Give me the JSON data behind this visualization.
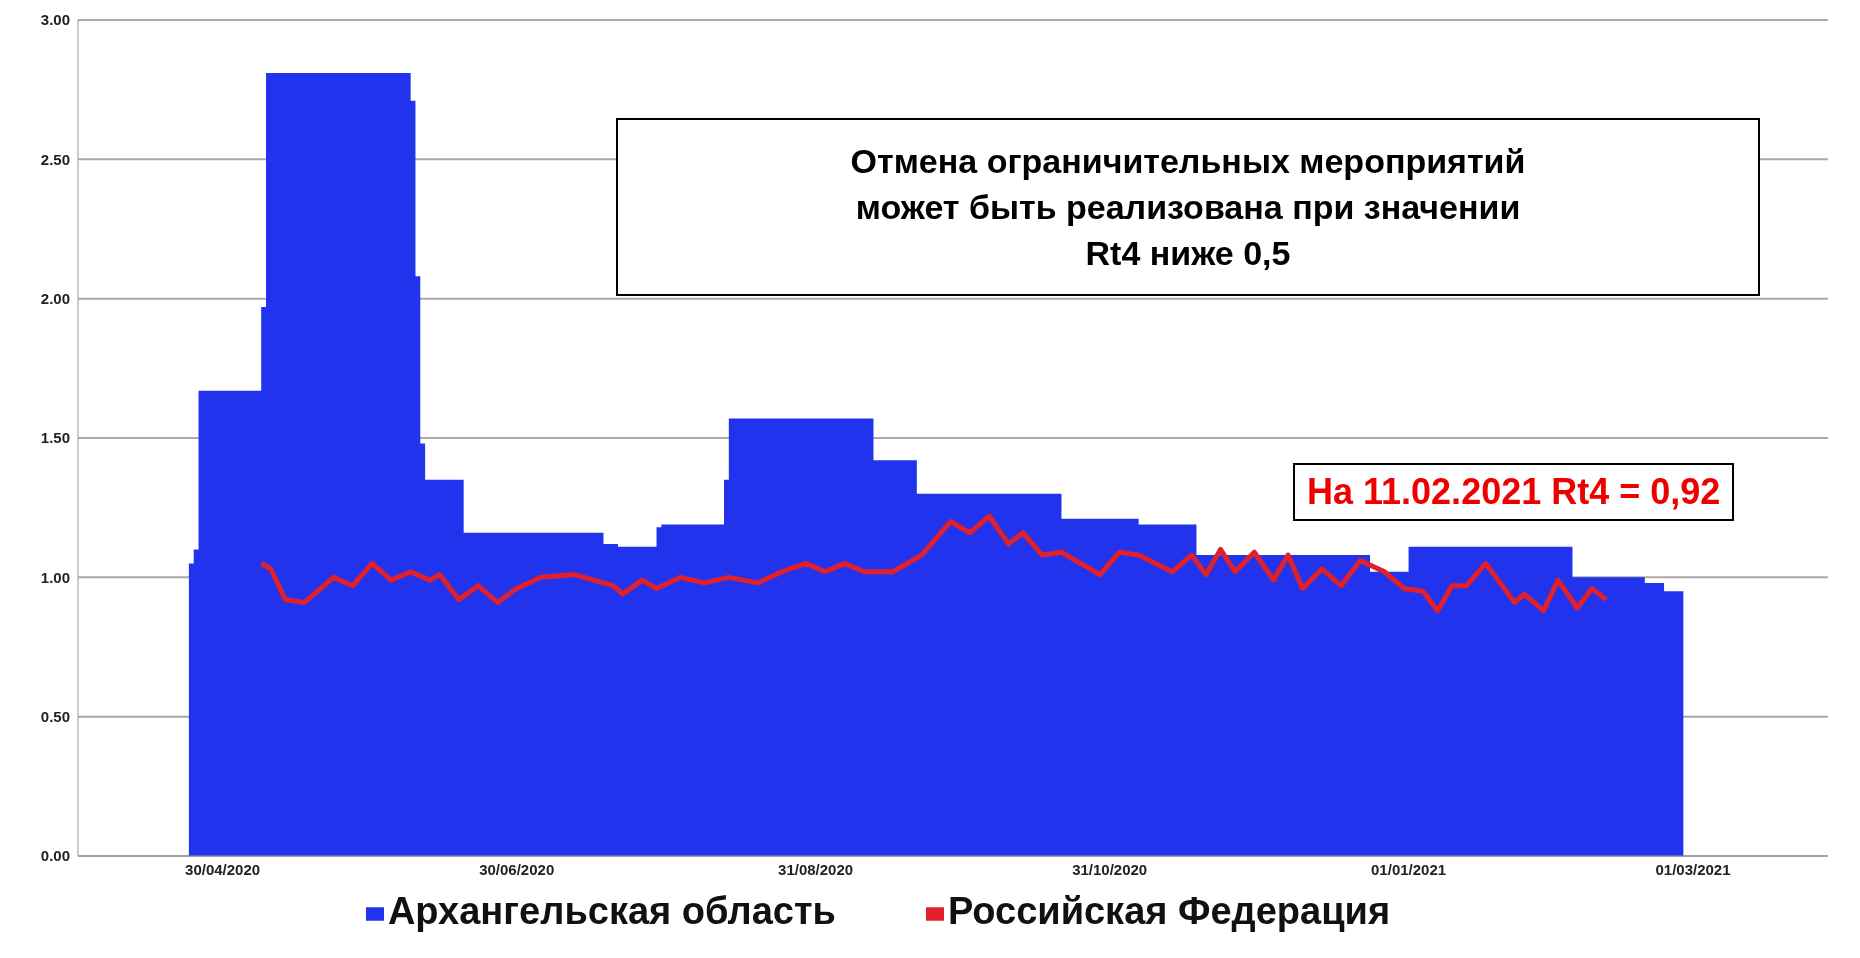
{
  "chart_data": {
    "type": "area",
    "xlim": [
      "2020-03-31",
      "2021-03-29"
    ],
    "xticks": [
      {
        "value": "2020-04-30",
        "label": "30/04/2020"
      },
      {
        "value": "2020-06-30",
        "label": "30/06/2020"
      },
      {
        "value": "2020-08-31",
        "label": "31/08/2020"
      },
      {
        "value": "2020-10-31",
        "label": "31/10/2020"
      },
      {
        "value": "2021-01-01",
        "label": "01/01/2021"
      },
      {
        "value": "2021-03-01",
        "label": "01/03/2021"
      }
    ],
    "ylim": [
      0,
      3
    ],
    "yticks": [
      {
        "value": 0,
        "label": "0.00"
      },
      {
        "value": 0.5,
        "label": "0.50"
      },
      {
        "value": 1,
        "label": "1.00"
      },
      {
        "value": 1.5,
        "label": "1.50"
      },
      {
        "value": 2,
        "label": "2.00"
      },
      {
        "value": 2.5,
        "label": "2.50"
      },
      {
        "value": 3,
        "label": "3.00"
      }
    ],
    "grid": "y",
    "legend": "bottom",
    "series": [
      {
        "name": "Архангельская область",
        "color": "#2233ee",
        "x": [
          "2020-04-23",
          "2020-04-24",
          "2020-04-25",
          "2020-05-08",
          "2020-05-09",
          "2020-06-08",
          "2020-06-09",
          "2020-06-10",
          "2020-06-11",
          "2020-06-19",
          "2020-07-18",
          "2020-07-21",
          "2020-07-29",
          "2020-07-30",
          "2020-08-12",
          "2020-08-13",
          "2020-09-12",
          "2020-09-21",
          "2020-10-21",
          "2020-11-06",
          "2020-11-18",
          "2020-12-24",
          "2021-01-01",
          "2021-02-04",
          "2021-02-19",
          "2021-02-23",
          "2021-02-27"
        ],
        "values": [
          1.05,
          1.1,
          1.67,
          1.97,
          2.81,
          2.71,
          2.08,
          1.48,
          1.35,
          1.16,
          1.12,
          1.11,
          1.18,
          1.19,
          1.35,
          1.57,
          1.42,
          1.3,
          1.21,
          1.19,
          1.08,
          1.02,
          1.11,
          1.0,
          0.98,
          0.95,
          0.92
        ]
      },
      {
        "name": "Российская Федерация",
        "type": "line",
        "color": "#e0202a",
        "x": [
          "2020-05-08",
          "2020-05-10",
          "2020-05-13",
          "2020-05-17",
          "2020-05-23",
          "2020-05-27",
          "2020-05-31",
          "2020-06-04",
          "2020-06-08",
          "2020-06-12",
          "2020-06-14",
          "2020-06-18",
          "2020-06-22",
          "2020-06-26",
          "2020-06-30",
          "2020-07-05",
          "2020-07-12",
          "2020-07-20",
          "2020-07-22",
          "2020-07-26",
          "2020-07-29",
          "2020-08-03",
          "2020-08-08",
          "2020-08-13",
          "2020-08-19",
          "2020-08-24",
          "2020-08-29",
          "2020-09-02",
          "2020-09-06",
          "2020-09-10",
          "2020-09-16",
          "2020-09-22",
          "2020-09-28",
          "2020-10-02",
          "2020-10-06",
          "2020-10-10",
          "2020-10-13",
          "2020-10-17",
          "2020-10-21",
          "2020-10-29",
          "2020-11-02",
          "2020-11-06",
          "2020-11-13",
          "2020-11-17",
          "2020-11-20",
          "2020-11-23",
          "2020-11-26",
          "2020-11-30",
          "2020-12-04",
          "2020-12-07",
          "2020-12-10",
          "2020-12-14",
          "2020-12-18",
          "2020-12-22",
          "2020-12-27",
          "2020-12-31",
          "2021-01-04",
          "2021-01-07",
          "2021-01-10",
          "2021-01-13",
          "2021-01-17",
          "2021-01-23",
          "2021-01-25",
          "2021-01-29",
          "2021-02-01",
          "2021-02-05",
          "2021-02-08",
          "2021-02-11"
        ],
        "values": [
          1.05,
          1.03,
          0.92,
          0.91,
          1.0,
          0.97,
          1.05,
          0.99,
          1.02,
          0.99,
          1.01,
          0.92,
          0.97,
          0.91,
          0.96,
          1.0,
          1.01,
          0.97,
          0.94,
          0.99,
          0.96,
          1.0,
          0.98,
          1.0,
          0.98,
          1.02,
          1.05,
          1.02,
          1.05,
          1.02,
          1.02,
          1.08,
          1.2,
          1.16,
          1.22,
          1.12,
          1.16,
          1.08,
          1.09,
          1.01,
          1.09,
          1.08,
          1.02,
          1.08,
          1.01,
          1.1,
          1.02,
          1.09,
          0.99,
          1.08,
          0.96,
          1.03,
          0.97,
          1.06,
          1.02,
          0.96,
          0.95,
          0.88,
          0.97,
          0.97,
          1.05,
          0.91,
          0.94,
          0.88,
          0.99,
          0.89,
          0.96,
          0.92
        ]
      }
    ],
    "annotations": [
      "Отмена ограничительных мероприятий\nможет быть реализована при значении\nRt4 ниже 0,5",
      "На 11.02.2021 Rt4 = 0,92"
    ]
  }
}
